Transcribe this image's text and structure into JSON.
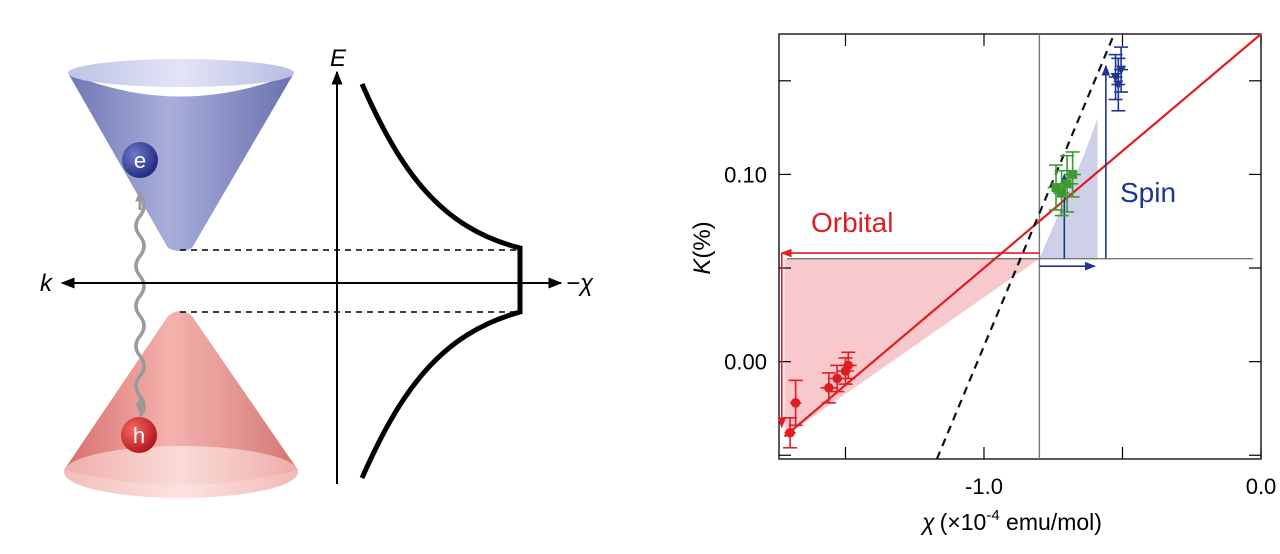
{
  "left_panel": {
    "energy_axis_label": "E",
    "momentum_axis_label": "k",
    "susceptibility_axis_label": "−χ",
    "electron_label": "e",
    "hole_label": "h",
    "colors": {
      "conduction_band": "#8b93c4",
      "valence_band": "#e8898a",
      "electron": "#2f3f9e",
      "hole": "#d8262b"
    }
  },
  "chart_data": {
    "type": "scatter",
    "ylabel_italic": "K",
    "ylabel_unit": "(%)",
    "xlabel_symbol": "χ",
    "xlabel_unit_prefix": "(×10",
    "xlabel_exponent": "-4",
    "xlabel_unit_suffix": " emu/mol)",
    "xlim": [
      -1.74,
      0.0
    ],
    "ylim": [
      -0.052,
      0.175
    ],
    "x_tick_labels": [
      {
        "value": -1.0,
        "label": "-1.0"
      },
      {
        "value": 0.0,
        "label": "0.0"
      }
    ],
    "y_tick_labels": [
      {
        "value": 0.1,
        "label": "0.10"
      },
      {
        "value": 0.0,
        "label": "0.00"
      }
    ],
    "x_tick_values": [
      -1.5,
      -1.0,
      -0.5,
      0.0
    ],
    "y_tick_values": [
      -0.05,
      0.0,
      0.05,
      0.1,
      0.15
    ],
    "reference_point": {
      "x": -0.8,
      "y": 0.055
    },
    "vertical_reference_x": -0.8,
    "horizontal_reference_y": 0.055,
    "annotations": {
      "orbital": "Orbital",
      "spin": "Spin"
    },
    "colors": {
      "red": "#e11d21",
      "blue": "#1e3596",
      "green": "#3c9a32",
      "black": "#111111",
      "orbital_fill": "#f6c3c8",
      "spin_fill": "#c9cbe6"
    },
    "series": [
      {
        "color": "red",
        "points": [
          {
            "x": -1.7,
            "y": -0.038,
            "yerr": 0.008,
            "xerr": 0.02
          },
          {
            "x": -1.68,
            "y": -0.022,
            "yerr": 0.012,
            "xerr": 0.02
          },
          {
            "x": -1.56,
            "y": -0.014,
            "yerr": 0.008,
            "xerr": 0.03
          },
          {
            "x": -1.53,
            "y": -0.009,
            "yerr": 0.007,
            "xerr": 0.03
          },
          {
            "x": -1.5,
            "y": -0.005,
            "yerr": 0.007,
            "xerr": 0.03
          },
          {
            "x": -1.49,
            "y": -0.002,
            "yerr": 0.007,
            "xerr": 0.03
          }
        ]
      },
      {
        "color": "green",
        "points": [
          {
            "x": -0.74,
            "y": 0.093,
            "yerr": 0.012,
            "xerr": 0.03
          },
          {
            "x": -0.72,
            "y": 0.09,
            "yerr": 0.012,
            "xerr": 0.03
          },
          {
            "x": -0.7,
            "y": 0.095,
            "yerr": 0.015,
            "xerr": 0.04
          },
          {
            "x": -0.68,
            "y": 0.1,
            "yerr": 0.012,
            "xerr": 0.03
          }
        ]
      },
      {
        "color": "blue",
        "points": [
          {
            "x": -0.525,
            "y": 0.152,
            "yerr": 0.012,
            "xerr": 0.025
          },
          {
            "x": -0.515,
            "y": 0.148,
            "yerr": 0.014,
            "xerr": 0.025
          },
          {
            "x": -0.505,
            "y": 0.156,
            "yerr": 0.012,
            "xerr": 0.025
          }
        ]
      }
    ],
    "red_fit_line": [
      {
        "x": -1.72,
        "y": -0.04
      },
      {
        "x": 0.0,
        "y": 0.175
      }
    ],
    "dashed_line": [
      {
        "x": -1.17,
        "y": -0.052
      },
      {
        "x": -0.53,
        "y": 0.175
      }
    ],
    "orbital_shaded_region": [
      {
        "x": -1.72,
        "y": 0.055
      },
      {
        "x": -0.8,
        "y": 0.055
      },
      {
        "x": -1.72,
        "y": -0.04
      }
    ],
    "spin_shaded_region": [
      {
        "x": -0.8,
        "y": 0.055
      },
      {
        "x": -0.64,
        "y": 0.11
      },
      {
        "x": -0.59,
        "y": 0.13
      },
      {
        "x": -0.59,
        "y": 0.055
      }
    ],
    "orbital_horizontal_arrow": {
      "from": {
        "x": -0.8,
        "y": 0.058
      },
      "to": {
        "x": -1.73,
        "y": 0.058
      }
    },
    "orbital_vertical_arrow": {
      "from": {
        "x": -1.73,
        "y": 0.058
      },
      "to": {
        "x": -1.73,
        "y": -0.035
      }
    },
    "spin_horizontal_arrow": {
      "from": {
        "x": -0.8,
        "y": 0.051
      },
      "to": {
        "x": -0.6,
        "y": 0.051
      }
    },
    "spin_vertical_arrow_long": {
      "from": {
        "x": -0.56,
        "y": 0.055
      },
      "to": {
        "x": -0.56,
        "y": 0.158
      }
    },
    "spin_vertical_arrow_short": {
      "from": {
        "x": -0.71,
        "y": 0.055
      },
      "to": {
        "x": -0.71,
        "y": 0.1
      }
    }
  }
}
